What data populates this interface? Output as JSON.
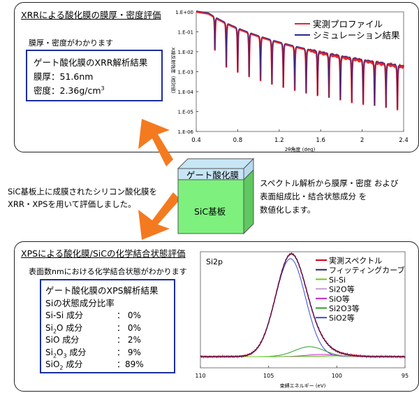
{
  "xrr": {
    "title": "XRRによる酸化膜の膜厚・密度評価",
    "subtitle": "膜厚・密度がわかります",
    "result_title": "ゲート酸化膜のXRR解析結果",
    "thickness": "膜厚：51.6nm",
    "density_prefix": "密度：2.36g/cm",
    "density_sup": "3"
  },
  "middle": {
    "left_line1": "SiC基板上に成膜されたシリコン酸化膜を",
    "left_line2": "XRR・XPSを用いて評価しました。",
    "right_line1": "スペクトル解析から膜厚・密度 および",
    "right_line2": "表面組成比・結合状態成分 を",
    "right_line3": "数値化します。",
    "cube_top": "ゲート酸化膜",
    "cube_front": "SiC基板"
  },
  "xps": {
    "title": "XPSによる酸化膜/SiCの化学結合状態評価",
    "subtitle": "表面数nmにおける化学結合状態がわかります",
    "result_title": "ゲート酸化膜のXPS解析結果",
    "ratio_title": "Siの状態成分比率",
    "rows": [
      {
        "pre": "Si-Si",
        "sub": "",
        "post": " 成分",
        "value": "：  0%"
      },
      {
        "pre": "Si",
        "sub": "2",
        "post": "O 成分",
        "value": "：  0%"
      },
      {
        "pre": "SiO",
        "sub": "",
        "post": " 成分",
        "value": "：  2%"
      },
      {
        "pre": "Si",
        "sub": "2",
        "post": "O",
        "sub2": "3",
        "post2": " 成分",
        "value": "：  9%"
      },
      {
        "pre": "SiO",
        "sub": "2",
        "post": " 成分",
        "value": "：89%"
      }
    ]
  },
  "colors": {
    "box_border": "#1a2e9c",
    "arrow": "#f47a20",
    "red": "#e8232a",
    "navy": "#262a8a",
    "cube_top": "#c7e6f5",
    "cube_front": "#7ef07e",
    "cube_side": "#5fc85f"
  },
  "chart_data": [
    {
      "type": "line",
      "x_title": "2θ角度 (deg)",
      "y_title": "X線反射強度（相対値）",
      "scale_y": "log",
      "xlim": [
        0.4,
        2.4
      ],
      "ylim": [
        1e-06,
        1
      ],
      "x_ticks": [
        "0.4",
        "0.8",
        "1.2",
        "1.6",
        "2",
        "2.4"
      ],
      "y_ticks": [
        "1.E-06",
        "1.E-05",
        "1.E-04",
        "1.E-03",
        "1.E-02",
        "1.E-01",
        "1.E+00"
      ],
      "legend_position": "top-right",
      "series": [
        {
          "name": "実測プロファイル",
          "color": "#e8232a"
        },
        {
          "name": "シミュレーション結果",
          "color": "#262a8a"
        }
      ],
      "critical_angle": 0.52,
      "fringe_minima_approx": [
        0.57,
        0.68,
        0.79,
        0.9,
        1.01,
        1.12,
        1.23,
        1.34,
        1.45,
        1.56,
        1.67,
        1.78,
        1.89,
        2.0,
        2.11,
        2.22,
        2.33
      ]
    },
    {
      "type": "line",
      "label": "Si2p",
      "x_title": "束縛エネルギー (eV)",
      "xlim": [
        110,
        95
      ],
      "x_ticks": [
        "110",
        "105",
        "100",
        "95"
      ],
      "legend_position": "top-right",
      "series": [
        {
          "name": "実測スペクトル",
          "color": "#d8001c"
        },
        {
          "name": "フィッティングカーブ",
          "color": "#222266"
        },
        {
          "name": "Si-Si",
          "color": "#66cc22"
        },
        {
          "name": "Si2O等",
          "color": "#c8a0d8"
        },
        {
          "name": "SiO等",
          "color": "#cc22cc"
        },
        {
          "name": "Si2O3等",
          "color": "#2aa02a"
        },
        {
          "name": "SiO2等",
          "color": "#3a4ad8"
        }
      ],
      "peaks": [
        {
          "name": "SiO2等",
          "center": 103.4,
          "percent": 89
        },
        {
          "name": "Si2O3等",
          "center": 102.0,
          "percent": 9
        },
        {
          "name": "SiO等",
          "center": 101.1,
          "percent": 2
        },
        {
          "name": "Si2O等",
          "center": 100.5,
          "percent": 0
        },
        {
          "name": "Si-Si",
          "center": 99.6,
          "percent": 0
        }
      ]
    }
  ]
}
